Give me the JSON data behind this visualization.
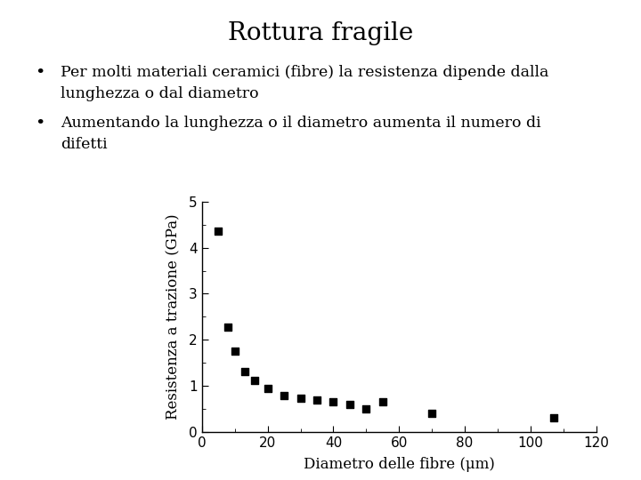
{
  "title": "Rottura fragile",
  "bullet1_line1": "Per molti materiali ceramici (fibre) la resistenza dipende dalla",
  "bullet1_line2": "lunghezza o dal diametro",
  "bullet2_line1": "Aumentando la lunghezza o il diametro aumenta il numero di",
  "bullet2_line2": "difetti",
  "xlabel": "Diametro delle fibre (μm)",
  "ylabel": "Resistenza a trazione (GPa)",
  "x_data": [
    5,
    8,
    10,
    13,
    16,
    20,
    25,
    30,
    35,
    40,
    45,
    50,
    55,
    70,
    107
  ],
  "y_data": [
    4.35,
    2.28,
    1.75,
    1.32,
    1.12,
    0.95,
    0.8,
    0.73,
    0.7,
    0.65,
    0.6,
    0.5,
    0.65,
    0.4,
    0.3
  ],
  "xlim": [
    0,
    120
  ],
  "ylim": [
    0,
    5
  ],
  "xticks": [
    0,
    20,
    40,
    60,
    80,
    100,
    120
  ],
  "yticks": [
    0,
    1,
    2,
    3,
    4,
    5
  ],
  "marker_color": "#000000",
  "marker_size": 6,
  "background_color": "#ffffff",
  "title_fontsize": 20,
  "label_fontsize": 12,
  "tick_fontsize": 11,
  "text_fontsize": 12.5,
  "bullet_fontsize": 14
}
